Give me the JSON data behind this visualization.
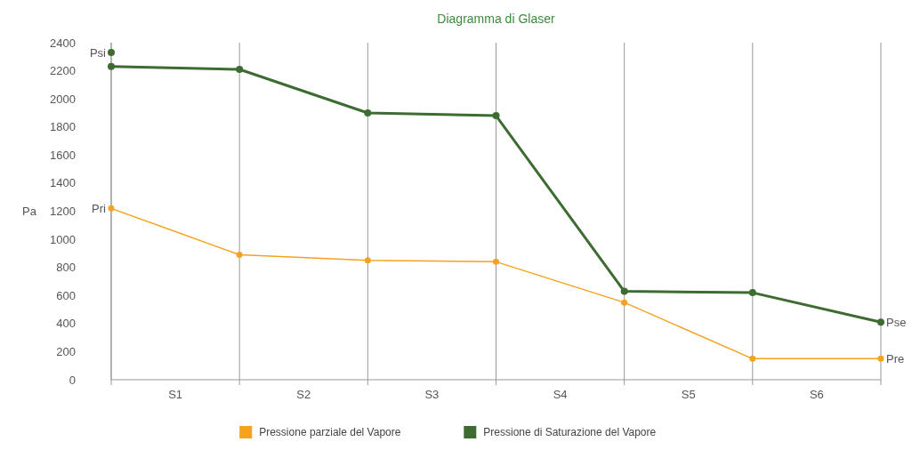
{
  "chart_data": {
    "type": "line",
    "title": "Diagramma di Glaser",
    "ylabel": "Pa",
    "categories": [
      null,
      null,
      null,
      null,
      null,
      null,
      null
    ],
    "ylim": [
      0,
      2400
    ],
    "yticks": [
      0,
      200,
      400,
      600,
      800,
      1000,
      1200,
      1400,
      1600,
      1800,
      2000,
      2200,
      2400
    ],
    "series": [
      {
        "name": "Pressione parziale del Vapore",
        "color": "#f5a21f",
        "values": [
          1220,
          890,
          850,
          840,
          550,
          150,
          150
        ]
      },
      {
        "name": "Pressione di Saturazione del Vapore",
        "color": "#3d6b32",
        "values": [
          2230,
          2210,
          1900,
          1880,
          630,
          620,
          410
        ]
      },
      {
        "type": "scatter",
        "color": "#3d6b32",
        "values": [
          2330,
          null,
          null,
          null,
          null,
          null,
          null
        ]
      }
    ],
    "annotations": [
      "Psi",
      "Pri",
      "Pse",
      "Pre",
      "S1",
      "S2",
      "S3",
      "S4",
      "S5",
      "S6"
    ],
    "marker": "circle",
    "grid": "x",
    "legend": "bottom"
  }
}
